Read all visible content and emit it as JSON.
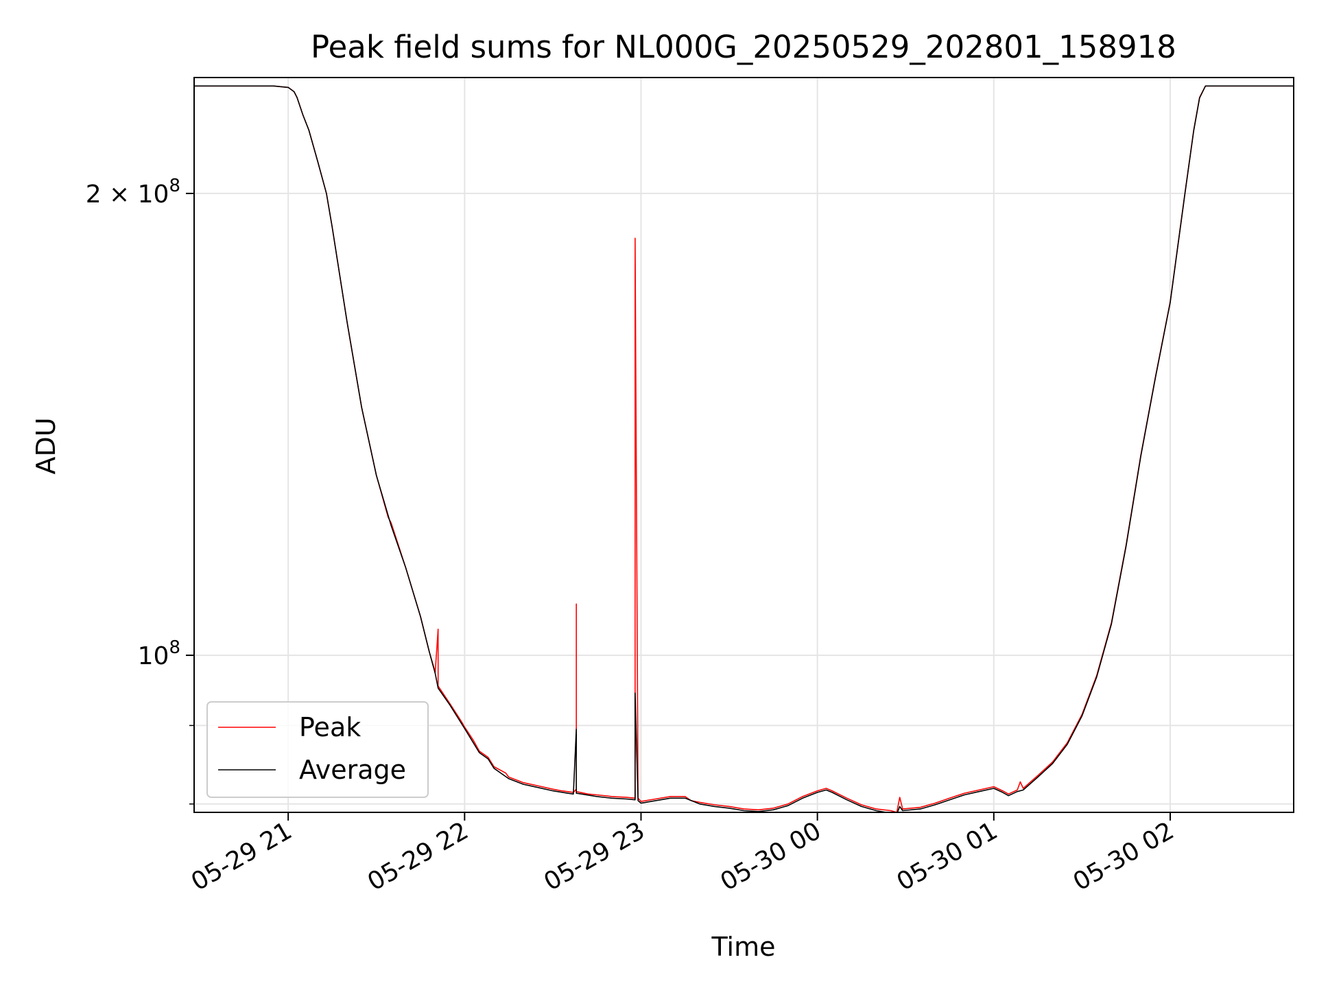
{
  "chart_data": {
    "type": "line",
    "title": "Peak field sums for NL000G_20250529_202801_158918",
    "xlabel": "Time",
    "ylabel": "ADU",
    "yscale": "log",
    "grid": true,
    "legend_position": "lower-left",
    "xlim": [
      "2025-05-29 20:28",
      "2025-05-30 02:42"
    ],
    "ylim": [
      79000000,
      238000000
    ],
    "x_ticks": [
      {
        "value": "2025-05-29 21:00",
        "label": "05-29 21"
      },
      {
        "value": "2025-05-29 22:00",
        "label": "05-29 22"
      },
      {
        "value": "2025-05-29 23:00",
        "label": "05-29 23"
      },
      {
        "value": "2025-05-30 00:00",
        "label": "05-30 00"
      },
      {
        "value": "2025-05-30 01:00",
        "label": "05-30 01"
      },
      {
        "value": "2025-05-30 02:00",
        "label": "05-30 02"
      }
    ],
    "y_ticks_major": [
      {
        "value": 100000000,
        "label": "10^8",
        "base": "10",
        "exp": "8"
      },
      {
        "value": 200000000,
        "label": "2×10^8",
        "base": "2 × 10",
        "exp": "8"
      }
    ],
    "y_ticks_minor": [
      80000000,
      90000000
    ],
    "series": [
      {
        "name": "Peak",
        "color": "#ff0000",
        "points": [
          [
            "2025-05-29 20:28",
            235000000
          ],
          [
            "2025-05-29 20:55",
            235000000
          ],
          [
            "2025-05-29 21:00",
            234500000
          ],
          [
            "2025-05-29 21:02",
            233000000
          ],
          [
            "2025-05-29 21:03",
            231000000
          ],
          [
            "2025-05-29 21:05",
            225000000
          ],
          [
            "2025-05-29 21:07",
            220000000
          ],
          [
            "2025-05-29 21:10",
            210000000
          ],
          [
            "2025-05-29 21:13",
            200000000
          ],
          [
            "2025-05-29 21:15",
            190000000
          ],
          [
            "2025-05-29 21:20",
            165000000
          ],
          [
            "2025-05-29 21:25",
            145000000
          ],
          [
            "2025-05-29 21:30",
            131000000
          ],
          [
            "2025-05-29 21:34",
            123000000
          ],
          [
            "2025-05-29 21:35",
            122000000
          ],
          [
            "2025-05-29 21:40",
            114000000
          ],
          [
            "2025-05-29 21:45",
            106000000
          ],
          [
            "2025-05-29 21:48",
            100500000
          ],
          [
            "2025-05-29 21:50",
            97500000
          ],
          [
            "2025-05-29 21:51",
            104000000
          ],
          [
            "2025-05-29 21:51",
            95500000
          ],
          [
            "2025-05-29 21:55",
            93000000
          ],
          [
            "2025-05-29 21:59",
            90500000
          ],
          [
            "2025-05-29 22:00",
            89800000
          ],
          [
            "2025-05-29 22:03",
            88000000
          ],
          [
            "2025-05-29 22:05",
            86600000
          ],
          [
            "2025-05-29 22:08",
            85800000
          ],
          [
            "2025-05-29 22:10",
            84600000
          ],
          [
            "2025-05-29 22:14",
            83800000
          ],
          [
            "2025-05-29 22:15",
            83300000
          ],
          [
            "2025-05-29 22:20",
            82600000
          ],
          [
            "2025-05-29 22:25",
            82200000
          ],
          [
            "2025-05-29 22:30",
            81800000
          ],
          [
            "2025-05-29 22:33",
            81600000
          ],
          [
            "2025-05-29 22:37",
            81400000
          ],
          [
            "2025-05-29 22:38",
            81800000
          ],
          [
            "2025-05-29 22:38",
            108000000
          ],
          [
            "2025-05-29 22:38",
            81500000
          ],
          [
            "2025-05-29 22:42",
            81200000
          ],
          [
            "2025-05-29 22:45",
            81100000
          ],
          [
            "2025-05-29 22:50",
            80900000
          ],
          [
            "2025-05-29 22:55",
            80800000
          ],
          [
            "2025-05-29 22:58",
            80700000
          ],
          [
            "2025-05-29 22:58",
            187000000
          ],
          [
            "2025-05-29 22:59",
            80700000
          ],
          [
            "2025-05-29 23:00",
            80300000
          ],
          [
            "2025-05-29 23:05",
            80600000
          ],
          [
            "2025-05-29 23:10",
            80900000
          ],
          [
            "2025-05-29 23:15",
            80900000
          ],
          [
            "2025-05-29 23:17",
            80400000
          ],
          [
            "2025-05-29 23:20",
            80200000
          ],
          [
            "2025-05-29 23:25",
            79900000
          ],
          [
            "2025-05-29 23:30",
            79700000
          ],
          [
            "2025-05-29 23:35",
            79400000
          ],
          [
            "2025-05-29 23:40",
            79300000
          ],
          [
            "2025-05-29 23:45",
            79500000
          ],
          [
            "2025-05-29 23:50",
            80000000
          ],
          [
            "2025-05-29 23:55",
            80900000
          ],
          [
            "2025-05-30 00:00",
            81600000
          ],
          [
            "2025-05-30 00:03",
            81900000
          ],
          [
            "2025-05-30 00:05",
            81600000
          ],
          [
            "2025-05-30 00:10",
            80700000
          ],
          [
            "2025-05-30 00:15",
            79900000
          ],
          [
            "2025-05-30 00:20",
            79400000
          ],
          [
            "2025-05-30 00:25",
            79200000
          ],
          [
            "2025-05-30 00:27",
            79000000
          ],
          [
            "2025-05-30 00:28",
            80800000
          ],
          [
            "2025-05-30 00:29",
            79400000
          ],
          [
            "2025-05-30 00:35",
            79600000
          ],
          [
            "2025-05-30 00:40",
            80100000
          ],
          [
            "2025-05-30 00:45",
            80700000
          ],
          [
            "2025-05-30 00:50",
            81300000
          ],
          [
            "2025-05-30 00:55",
            81700000
          ],
          [
            "2025-05-30 01:00",
            82100000
          ],
          [
            "2025-05-30 01:03",
            81600000
          ],
          [
            "2025-05-30 01:05",
            81200000
          ],
          [
            "2025-05-30 01:08",
            81700000
          ],
          [
            "2025-05-30 01:09",
            82700000
          ],
          [
            "2025-05-30 01:10",
            81900000
          ],
          [
            "2025-05-30 01:15",
            83500000
          ],
          [
            "2025-05-30 01:20",
            85200000
          ],
          [
            "2025-05-30 01:25",
            87700000
          ],
          [
            "2025-05-30 01:30",
            91500000
          ],
          [
            "2025-05-30 01:35",
            97000000
          ],
          [
            "2025-05-30 01:40",
            105000000
          ],
          [
            "2025-05-30 01:45",
            118000000
          ],
          [
            "2025-05-30 01:50",
            135000000
          ],
          [
            "2025-05-30 01:55",
            152000000
          ],
          [
            "2025-05-30 02:00",
            170000000
          ],
          [
            "2025-05-30 02:05",
            200000000
          ],
          [
            "2025-05-30 02:08",
            220000000
          ],
          [
            "2025-05-30 02:10",
            231000000
          ],
          [
            "2025-05-30 02:12",
            235000000
          ],
          [
            "2025-05-30 02:42",
            235000000
          ]
        ]
      },
      {
        "name": "Average",
        "color": "#000000",
        "points": [
          [
            "2025-05-29 20:28",
            235000000
          ],
          [
            "2025-05-29 20:55",
            235000000
          ],
          [
            "2025-05-29 21:00",
            234500000
          ],
          [
            "2025-05-29 21:02",
            233000000
          ],
          [
            "2025-05-29 21:03",
            231000000
          ],
          [
            "2025-05-29 21:05",
            225000000
          ],
          [
            "2025-05-29 21:07",
            220000000
          ],
          [
            "2025-05-29 21:10",
            210000000
          ],
          [
            "2025-05-29 21:13",
            200000000
          ],
          [
            "2025-05-29 21:15",
            190000000
          ],
          [
            "2025-05-29 21:20",
            165000000
          ],
          [
            "2025-05-29 21:25",
            145000000
          ],
          [
            "2025-05-29 21:30",
            131000000
          ],
          [
            "2025-05-29 21:35",
            121500000
          ],
          [
            "2025-05-29 21:40",
            114000000
          ],
          [
            "2025-05-29 21:45",
            106000000
          ],
          [
            "2025-05-29 21:48",
            100500000
          ],
          [
            "2025-05-29 21:50",
            97300000
          ],
          [
            "2025-05-29 21:51",
            95200000
          ],
          [
            "2025-05-29 21:55",
            92800000
          ],
          [
            "2025-05-29 22:00",
            89600000
          ],
          [
            "2025-05-29 22:05",
            86400000
          ],
          [
            "2025-05-29 22:08",
            85600000
          ],
          [
            "2025-05-29 22:10",
            84400000
          ],
          [
            "2025-05-29 22:15",
            83100000
          ],
          [
            "2025-05-29 22:20",
            82400000
          ],
          [
            "2025-05-29 22:25",
            82000000
          ],
          [
            "2025-05-29 22:30",
            81600000
          ],
          [
            "2025-05-29 22:35",
            81300000
          ],
          [
            "2025-05-29 22:37",
            81200000
          ],
          [
            "2025-05-29 22:38",
            89500000
          ],
          [
            "2025-05-29 22:38",
            81300000
          ],
          [
            "2025-05-29 22:45",
            80900000
          ],
          [
            "2025-05-29 22:50",
            80700000
          ],
          [
            "2025-05-29 22:55",
            80600000
          ],
          [
            "2025-05-29 22:58",
            80500000
          ],
          [
            "2025-05-29 22:58",
            94500000
          ],
          [
            "2025-05-29 22:59",
            80400000
          ],
          [
            "2025-05-29 23:00",
            80100000
          ],
          [
            "2025-05-29 23:05",
            80400000
          ],
          [
            "2025-05-29 23:10",
            80700000
          ],
          [
            "2025-05-29 23:15",
            80700000
          ],
          [
            "2025-05-29 23:20",
            80000000
          ],
          [
            "2025-05-29 23:25",
            79700000
          ],
          [
            "2025-05-29 23:30",
            79500000
          ],
          [
            "2025-05-29 23:35",
            79200000
          ],
          [
            "2025-05-29 23:40",
            79100000
          ],
          [
            "2025-05-29 23:45",
            79300000
          ],
          [
            "2025-05-29 23:50",
            79800000
          ],
          [
            "2025-05-29 23:55",
            80700000
          ],
          [
            "2025-05-30 00:00",
            81400000
          ],
          [
            "2025-05-30 00:03",
            81700000
          ],
          [
            "2025-05-30 00:05",
            81400000
          ],
          [
            "2025-05-30 00:10",
            80500000
          ],
          [
            "2025-05-30 00:15",
            79700000
          ],
          [
            "2025-05-30 00:20",
            79200000
          ],
          [
            "2025-05-30 00:25",
            78900000
          ],
          [
            "2025-05-30 00:27",
            78800000
          ],
          [
            "2025-05-30 00:28",
            79700000
          ],
          [
            "2025-05-30 00:29",
            79200000
          ],
          [
            "2025-05-30 00:35",
            79400000
          ],
          [
            "2025-05-30 00:40",
            79900000
          ],
          [
            "2025-05-30 00:45",
            80500000
          ],
          [
            "2025-05-30 00:50",
            81100000
          ],
          [
            "2025-05-30 00:55",
            81500000
          ],
          [
            "2025-05-30 01:00",
            81900000
          ],
          [
            "2025-05-30 01:03",
            81400000
          ],
          [
            "2025-05-30 01:05",
            81000000
          ],
          [
            "2025-05-30 01:08",
            81500000
          ],
          [
            "2025-05-30 01:10",
            81700000
          ],
          [
            "2025-05-30 01:15",
            83300000
          ],
          [
            "2025-05-30 01:20",
            85000000
          ],
          [
            "2025-05-30 01:25",
            87500000
          ],
          [
            "2025-05-30 01:30",
            91300000
          ],
          [
            "2025-05-30 01:35",
            96800000
          ],
          [
            "2025-05-30 01:40",
            104800000
          ],
          [
            "2025-05-30 01:45",
            117800000
          ],
          [
            "2025-05-30 01:50",
            134800000
          ],
          [
            "2025-05-30 01:55",
            151800000
          ],
          [
            "2025-05-30 02:00",
            169800000
          ],
          [
            "2025-05-30 02:05",
            199800000
          ],
          [
            "2025-05-30 02:08",
            219800000
          ],
          [
            "2025-05-30 02:10",
            230800000
          ],
          [
            "2025-05-30 02:12",
            235000000
          ],
          [
            "2025-05-30 02:42",
            235000000
          ]
        ]
      }
    ]
  }
}
